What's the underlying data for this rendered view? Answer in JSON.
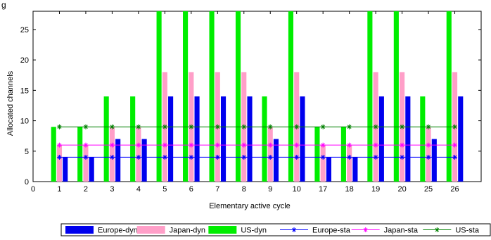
{
  "chart_data": {
    "type": "bar",
    "title": "",
    "xlabel": "Elementary active cycle",
    "ylabel": "Allocated channels",
    "ylim": [
      0,
      28
    ],
    "yticks": [
      0,
      5,
      10,
      15,
      20,
      25
    ],
    "categories": [
      "1",
      "2",
      "3",
      "4",
      "5",
      "6",
      "7",
      "8",
      "9",
      "10",
      "17",
      "18",
      "19",
      "20",
      "25",
      "26"
    ],
    "category_positions": [
      1,
      2,
      3,
      4,
      5,
      6,
      7,
      8,
      9,
      10,
      11,
      12,
      13,
      14,
      15,
      16
    ],
    "xticks": [
      0,
      1,
      2,
      3,
      4,
      5,
      6,
      7,
      8,
      9,
      10,
      11,
      12,
      13,
      14,
      15,
      16,
      17
    ],
    "xtick_labels": [
      "0",
      "1",
      "2",
      "3",
      "4",
      "5",
      "6",
      "7",
      "8",
      "9",
      "10",
      "17",
      "18",
      "19",
      "20",
      "25",
      "26",
      ""
    ],
    "xlim": [
      0,
      17
    ],
    "top_label_fragment": "g",
    "legend_position": "bottom",
    "series": [
      {
        "name": "US-dyn",
        "kind": "bar",
        "color": "#00ee00",
        "values": [
          9,
          9,
          14,
          14,
          28,
          28,
          28,
          28,
          14,
          28,
          9,
          9,
          28,
          28,
          14,
          28
        ]
      },
      {
        "name": "Japan-dyn",
        "kind": "bar",
        "color": "#ff9fc8",
        "values": [
          6,
          6,
          9,
          9,
          18,
          18,
          18,
          18,
          9,
          18,
          6,
          6,
          18,
          18,
          9,
          18
        ]
      },
      {
        "name": "Europe-dyn",
        "kind": "bar",
        "color": "#0000ee",
        "values": [
          4,
          4,
          7,
          7,
          14,
          14,
          14,
          14,
          7,
          14,
          4,
          4,
          14,
          14,
          7,
          14
        ]
      },
      {
        "name": "Europe-sta",
        "kind": "line",
        "color": "#0000ff",
        "value": 4
      },
      {
        "name": "Japan-sta",
        "kind": "line",
        "color": "#ff00ff",
        "value": 6
      },
      {
        "name": "US-sta",
        "kind": "line",
        "color": "#008000",
        "value": 9
      }
    ],
    "legend_order": [
      "Europe-dyn",
      "Japan-dyn",
      "US-dyn",
      "Europe-sta",
      "Japan-sta",
      "US-sta"
    ]
  }
}
